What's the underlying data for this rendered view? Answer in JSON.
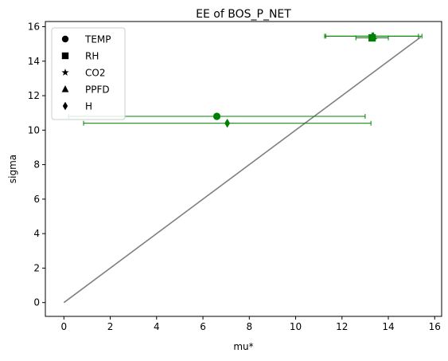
{
  "chart_data": {
    "type": "scatter",
    "title": "EE of BOS_P_NET",
    "xlabel": "mu*",
    "ylabel": "sigma",
    "xlim": [
      -0.8,
      16.3
    ],
    "ylim": [
      -0.8,
      16.3
    ],
    "xticks": [
      0,
      2,
      4,
      6,
      8,
      10,
      12,
      14,
      16
    ],
    "yticks": [
      0,
      2,
      4,
      6,
      8,
      10,
      12,
      14,
      16
    ],
    "grid": false,
    "legend_position": "top-left",
    "point_color": "#008000",
    "line_color": "#808080",
    "reference_line": {
      "x": [
        0,
        15.4
      ],
      "y": [
        0,
        15.4
      ]
    },
    "series": [
      {
        "name": "TEMP",
        "marker": "circle",
        "x": 6.6,
        "y": 10.8,
        "xerr": 6.4
      },
      {
        "name": "RH",
        "marker": "square",
        "x": 13.3,
        "y": 15.35,
        "xerr": 0.7
      },
      {
        "name": "CO2",
        "marker": "star",
        "x": 13.3,
        "y": 15.45,
        "xerr": 2.0
      },
      {
        "name": "PPFD",
        "marker": "triangle",
        "x": 13.35,
        "y": 15.45,
        "xerr": 2.1
      },
      {
        "name": "H",
        "marker": "diamond",
        "x": 7.05,
        "y": 10.4,
        "xerr": 6.2
      }
    ]
  }
}
